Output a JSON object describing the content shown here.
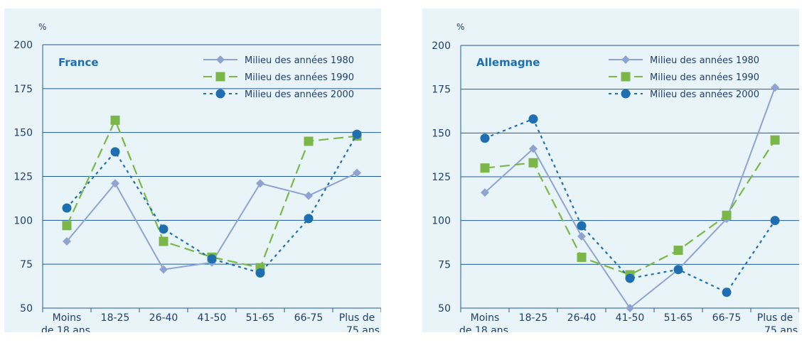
{
  "chart_data": [
    {
      "type": "line",
      "title": "France",
      "ylabel": "%",
      "ylim": [
        50,
        200
      ],
      "yticks": [
        50,
        75,
        100,
        125,
        150,
        175,
        200
      ],
      "grid": true,
      "legend_position": "top-right",
      "categories": [
        [
          "Moins",
          "de 18 ans"
        ],
        [
          "18-25"
        ],
        [
          "26-40"
        ],
        [
          "41-50"
        ],
        [
          "51-65"
        ],
        [
          "66-75"
        ],
        [
          "Plus de",
          "75 ans"
        ]
      ],
      "series": [
        {
          "name": "Milieu des années 1980",
          "style": "solid",
          "marker": "diamond",
          "color": "#8fa3d1",
          "values": [
            88,
            121,
            72,
            76,
            121,
            114,
            127
          ]
        },
        {
          "name": "Milieu des années 1990",
          "style": "dashed",
          "marker": "square",
          "color": "#7ab648",
          "values": [
            97,
            157,
            88,
            79,
            73,
            145,
            148
          ]
        },
        {
          "name": "Milieu des années 2000",
          "style": "dotted",
          "marker": "circle",
          "color": "#1f6fb0",
          "values": [
            107,
            139,
            95,
            78,
            70,
            101,
            149
          ]
        }
      ]
    },
    {
      "type": "line",
      "title": "Allemagne",
      "ylabel": "%",
      "ylim": [
        50,
        200
      ],
      "yticks": [
        50,
        75,
        100,
        125,
        150,
        175,
        200
      ],
      "grid": true,
      "legend_position": "top-center",
      "categories": [
        [
          "Moins",
          "de 18 ans"
        ],
        [
          "18-25"
        ],
        [
          "26-40"
        ],
        [
          "41-50"
        ],
        [
          "51-65"
        ],
        [
          "66-75"
        ],
        [
          "Plus de",
          "75 ans"
        ]
      ],
      "series": [
        {
          "name": "Milieu des années 1980",
          "style": "solid",
          "marker": "diamond",
          "color": "#8fa3d1",
          "values": [
            116,
            141,
            91,
            50,
            72,
            101,
            176
          ]
        },
        {
          "name": "Milieu des années 1990",
          "style": "dashed",
          "marker": "square",
          "color": "#7ab648",
          "values": [
            130,
            133,
            79,
            69,
            83,
            103,
            146
          ]
        },
        {
          "name": "Milieu des années 2000",
          "style": "dotted",
          "marker": "circle",
          "color": "#1f6fb0",
          "values": [
            147,
            158,
            97,
            67,
            72,
            59,
            100
          ]
        }
      ]
    }
  ]
}
